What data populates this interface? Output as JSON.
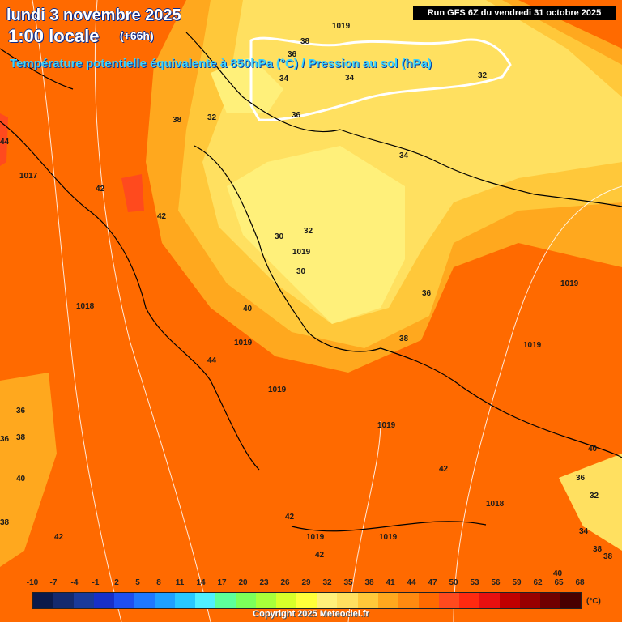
{
  "header": {
    "date": "lundi 3 novembre 2025",
    "local_hour": "1:00 locale",
    "lead_time": "(+66h)",
    "subtitle": "Température potentielle équivalente à 850hPa (°C) / Pression au sol (hPa)",
    "run_info": "Run GFS 6Z du vendredi 31 octobre 2025"
  },
  "map_labels": [
    {
      "text": "1019",
      "kind": "isobar"
    },
    {
      "text": "38",
      "kind": "temp"
    },
    {
      "text": "36",
      "kind": "temp"
    },
    {
      "text": "34",
      "kind": "temp"
    },
    {
      "text": "34",
      "kind": "temp"
    },
    {
      "text": "32",
      "kind": "temp"
    },
    {
      "text": "36",
      "kind": "temp"
    },
    {
      "text": "38",
      "kind": "temp"
    },
    {
      "text": "32",
      "kind": "temp"
    },
    {
      "text": "44",
      "kind": "temp"
    },
    {
      "text": "34",
      "kind": "temp"
    },
    {
      "text": "1017",
      "kind": "isobar"
    },
    {
      "text": "42",
      "kind": "temp"
    },
    {
      "text": "42",
      "kind": "temp"
    },
    {
      "text": "32",
      "kind": "temp"
    },
    {
      "text": "30",
      "kind": "temp"
    },
    {
      "text": "1019",
      "kind": "isobar"
    },
    {
      "text": "30",
      "kind": "temp"
    },
    {
      "text": "1019",
      "kind": "isobar"
    },
    {
      "text": "36",
      "kind": "temp"
    },
    {
      "text": "1018",
      "kind": "isobar"
    },
    {
      "text": "40",
      "kind": "temp"
    },
    {
      "text": "1019",
      "kind": "isobar"
    },
    {
      "text": "38",
      "kind": "temp"
    },
    {
      "text": "1019",
      "kind": "isobar"
    },
    {
      "text": "44",
      "kind": "temp"
    },
    {
      "text": "1019",
      "kind": "isobar"
    },
    {
      "text": "36",
      "kind": "temp"
    },
    {
      "text": "36",
      "kind": "temp"
    },
    {
      "text": "38",
      "kind": "temp"
    },
    {
      "text": "1019",
      "kind": "isobar"
    },
    {
      "text": "40",
      "kind": "temp"
    },
    {
      "text": "42",
      "kind": "temp"
    },
    {
      "text": "40",
      "kind": "temp"
    },
    {
      "text": "36",
      "kind": "temp"
    },
    {
      "text": "32",
      "kind": "temp"
    },
    {
      "text": "38",
      "kind": "temp"
    },
    {
      "text": "1018",
      "kind": "isobar"
    },
    {
      "text": "42",
      "kind": "temp"
    },
    {
      "text": "1019",
      "kind": "isobar"
    },
    {
      "text": "1019",
      "kind": "isobar"
    },
    {
      "text": "34",
      "kind": "temp"
    },
    {
      "text": "42",
      "kind": "temp"
    },
    {
      "text": "38",
      "kind": "temp"
    },
    {
      "text": "38",
      "kind": "temp"
    },
    {
      "text": "42",
      "kind": "temp"
    },
    {
      "text": "40",
      "kind": "temp"
    }
  ],
  "legend": {
    "ticks": [
      "-10",
      "-7",
      "-4",
      "-1",
      "2",
      "5",
      "8",
      "11",
      "14",
      "17",
      "20",
      "23",
      "26",
      "29",
      "32",
      "35",
      "38",
      "41",
      "44",
      "47",
      "50",
      "53",
      "56",
      "59",
      "62",
      "65",
      "68"
    ],
    "colors": [
      "#0b1a4a",
      "#142a6e",
      "#1a3a9a",
      "#1830c8",
      "#1e4ff0",
      "#1f78ff",
      "#1fa0ff",
      "#28c8ff",
      "#4ff0ff",
      "#5dff9a",
      "#7cff5a",
      "#a8ff3a",
      "#d8ff2a",
      "#ffff3a",
      "#fff07a",
      "#ffe060",
      "#ffc83a",
      "#ffa81e",
      "#ff8a10",
      "#ff6a00",
      "#ff4a1e",
      "#ff2a10",
      "#e81010",
      "#c00000",
      "#980000",
      "#700000",
      "#480000"
    ],
    "unit": "(°C)"
  },
  "copyright": "Copyright 2025 Meteociel.fr"
}
